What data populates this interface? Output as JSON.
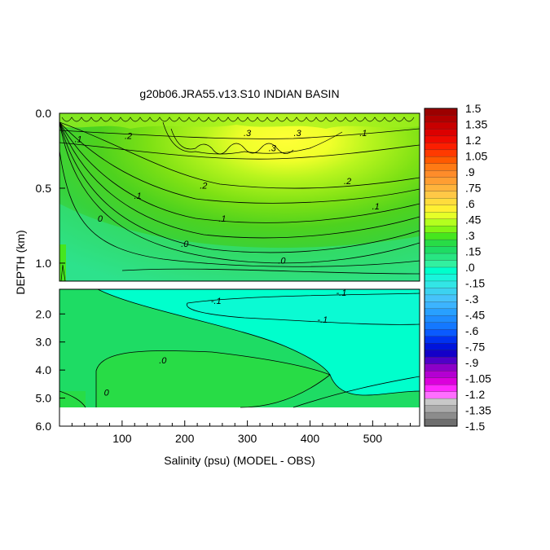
{
  "chart_data": {
    "type": "contour",
    "title": "g20b06.JRA55.v13.S10 INDIAN BASIN",
    "xlabel": "Salinity (psu) (MODEL - OBS)",
    "ylabel": "DEPTH (km)",
    "xlim": [
      0,
      575
    ],
    "x_ticks": [
      100,
      200,
      300,
      400,
      500
    ],
    "x_tick_labels": [
      "100",
      "200",
      "300",
      "400",
      "500"
    ],
    "upper_panel": {
      "ylim": [
        0,
        1.12
      ],
      "y_ticks": [
        0.0,
        0.5,
        1.0
      ],
      "y_tick_labels": [
        "0.0",
        "0.5",
        "1.0"
      ]
    },
    "lower_panel": {
      "ylim": [
        1.12,
        6.0
      ],
      "y_ticks": [
        2.0,
        3.0,
        4.0,
        5.0,
        6.0
      ],
      "y_tick_labels": [
        "2.0",
        "3.0",
        "4.0",
        "5.0",
        "6.0"
      ]
    },
    "contour_labels": [
      {
        "text": ".2",
        "x": 110,
        "d": 0.15
      },
      {
        "text": ".3",
        "x": 300,
        "d": 0.13
      },
      {
        "text": ".3",
        "x": 380,
        "d": 0.13
      },
      {
        "text": ".3",
        "x": 340,
        "d": 0.23
      },
      {
        "text": ".1",
        "x": 30,
        "d": 0.17
      },
      {
        "text": ".1",
        "x": 485,
        "d": 0.13
      },
      {
        "text": ".2",
        "x": 230,
        "d": 0.48
      },
      {
        "text": ".2",
        "x": 460,
        "d": 0.45
      },
      {
        "text": ".1",
        "x": 125,
        "d": 0.55
      },
      {
        "text": ".1",
        "x": 260,
        "d": 0.7
      },
      {
        "text": ".1",
        "x": 505,
        "d": 0.62
      },
      {
        "text": "0",
        "x": 65,
        "d": 0.7
      },
      {
        "text": ".0",
        "x": 200,
        "d": 0.87
      },
      {
        "text": ".0",
        "x": 355,
        "d": 0.98
      },
      {
        "text": "-.1",
        "x": 450,
        "d": 1.23
      },
      {
        "text": "-.1",
        "x": 250,
        "d": 1.53
      },
      {
        "text": "-.1",
        "x": 420,
        "d": 2.2
      },
      {
        "text": ".0",
        "x": 165,
        "d": 3.65
      },
      {
        "text": "0",
        "x": 75,
        "d": 4.8
      }
    ],
    "colorbar": {
      "levels": [
        1.5,
        1.35,
        1.2,
        1.05,
        0.9,
        0.75,
        0.6,
        0.45,
        0.3,
        0.15,
        0.0,
        -0.15,
        -0.3,
        -0.45,
        -0.6,
        -0.75,
        -0.9,
        -1.05,
        -1.2,
        -1.35,
        -1.5
      ],
      "labels": [
        "1.5",
        "1.35",
        "1.2",
        "1.05",
        ".9",
        ".75",
        ".6",
        ".45",
        ".3",
        ".15",
        ".0",
        "-.15",
        "-.3",
        "-.45",
        "-.6",
        "-.75",
        "-.9",
        "-1.05",
        "-1.2",
        "-1.35",
        "-1.5"
      ],
      "colors": [
        "#9c0000",
        "#b00000",
        "#c80000",
        "#dc0000",
        "#ee0a00",
        "#fc1e00",
        "#ff3a00",
        "#ff5a00",
        "#ff7a14",
        "#ff8c2a",
        "#ff9e32",
        "#ffb43c",
        "#ffc846",
        "#ffdc3c",
        "#fff032",
        "#e6ff28",
        "#b4ff1e",
        "#82f514",
        "#46e61e",
        "#28dc46",
        "#1edc64",
        "#28e682",
        "#32f0a0",
        "#00ffcc",
        "#19f5dc",
        "#32e6e6",
        "#3cd2f0",
        "#46c3fa",
        "#3cb4ff",
        "#28a0ff",
        "#1e8cff",
        "#1478ff",
        "#0a5aff",
        "#0032f0",
        "#0014dc",
        "#1400c8",
        "#5000c8",
        "#8c00c8",
        "#b400d2",
        "#dc00dc",
        "#ff28ff",
        "#ff6eff",
        "#c8c8c8",
        "#aaaaaa",
        "#8c8c8c",
        "#6e6e6e"
      ]
    }
  }
}
